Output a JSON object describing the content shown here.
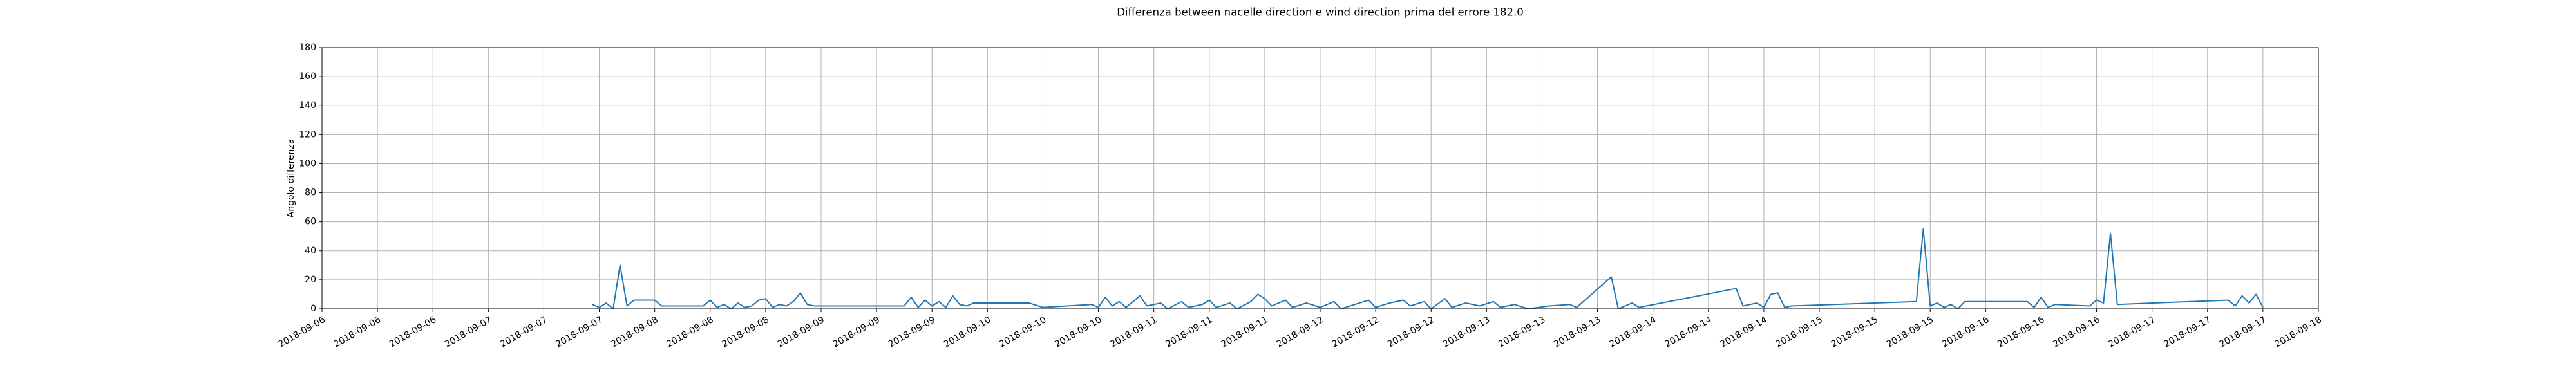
{
  "chart_data": {
    "type": "line",
    "title": "Differenza between nacelle direction e wind direction prima del errore 182.0",
    "ylabel": "Angolo differenza",
    "grid": true,
    "xlim": [
      "2018-09-06 00:00",
      "2018-09-18 00:00"
    ],
    "ylim": [
      0,
      180
    ],
    "yticks": [
      0,
      20,
      40,
      60,
      80,
      100,
      120,
      140,
      160,
      180
    ],
    "xticks": [
      {
        "value": "2018-09-06 00:00",
        "label": "2018-09-06"
      },
      {
        "value": "2018-09-06 08:00",
        "label": "2018-09-06"
      },
      {
        "value": "2018-09-06 16:00",
        "label": "2018-09-06"
      },
      {
        "value": "2018-09-07 00:00",
        "label": "2018-09-07"
      },
      {
        "value": "2018-09-07 08:00",
        "label": "2018-09-07"
      },
      {
        "value": "2018-09-07 16:00",
        "label": "2018-09-07"
      },
      {
        "value": "2018-09-08 00:00",
        "label": "2018-09-08"
      },
      {
        "value": "2018-09-08 08:00",
        "label": "2018-09-08"
      },
      {
        "value": "2018-09-08 16:00",
        "label": "2018-09-08"
      },
      {
        "value": "2018-09-09 00:00",
        "label": "2018-09-09"
      },
      {
        "value": "2018-09-09 08:00",
        "label": "2018-09-09"
      },
      {
        "value": "2018-09-09 16:00",
        "label": "2018-09-09"
      },
      {
        "value": "2018-09-10 00:00",
        "label": "2018-09-10"
      },
      {
        "value": "2018-09-10 08:00",
        "label": "2018-09-10"
      },
      {
        "value": "2018-09-10 16:00",
        "label": "2018-09-10"
      },
      {
        "value": "2018-09-11 00:00",
        "label": "2018-09-11"
      },
      {
        "value": "2018-09-11 08:00",
        "label": "2018-09-11"
      },
      {
        "value": "2018-09-11 16:00",
        "label": "2018-09-11"
      },
      {
        "value": "2018-09-12 00:00",
        "label": "2018-09-12"
      },
      {
        "value": "2018-09-12 08:00",
        "label": "2018-09-12"
      },
      {
        "value": "2018-09-12 16:00",
        "label": "2018-09-12"
      },
      {
        "value": "2018-09-13 00:00",
        "label": "2018-09-13"
      },
      {
        "value": "2018-09-13 08:00",
        "label": "2018-09-13"
      },
      {
        "value": "2018-09-13 16:00",
        "label": "2018-09-13"
      },
      {
        "value": "2018-09-14 00:00",
        "label": "2018-09-14"
      },
      {
        "value": "2018-09-14 08:00",
        "label": "2018-09-14"
      },
      {
        "value": "2018-09-14 16:00",
        "label": "2018-09-14"
      },
      {
        "value": "2018-09-15 00:00",
        "label": "2018-09-15"
      },
      {
        "value": "2018-09-15 08:00",
        "label": "2018-09-15"
      },
      {
        "value": "2018-09-15 16:00",
        "label": "2018-09-15"
      },
      {
        "value": "2018-09-16 00:00",
        "label": "2018-09-16"
      },
      {
        "value": "2018-09-16 08:00",
        "label": "2018-09-16"
      },
      {
        "value": "2018-09-16 16:00",
        "label": "2018-09-16"
      },
      {
        "value": "2018-09-17 00:00",
        "label": "2018-09-17"
      },
      {
        "value": "2018-09-17 08:00",
        "label": "2018-09-17"
      },
      {
        "value": "2018-09-17 16:00",
        "label": "2018-09-17"
      },
      {
        "value": "2018-09-18 00:00",
        "label": "2018-09-18"
      }
    ],
    "x": [
      "2018-09-07 15:00",
      "2018-09-07 16:00",
      "2018-09-07 17:00",
      "2018-09-07 18:00",
      "2018-09-07 19:00",
      "2018-09-07 20:00",
      "2018-09-07 21:00",
      "2018-09-08 00:00",
      "2018-09-08 01:00",
      "2018-09-08 07:00",
      "2018-09-08 08:00",
      "2018-09-08 09:00",
      "2018-09-08 10:00",
      "2018-09-08 11:00",
      "2018-09-08 12:00",
      "2018-09-08 13:00",
      "2018-09-08 14:00",
      "2018-09-08 15:00",
      "2018-09-08 16:00",
      "2018-09-08 17:00",
      "2018-09-08 18:00",
      "2018-09-08 19:00",
      "2018-09-08 20:00",
      "2018-09-08 21:00",
      "2018-09-08 22:00",
      "2018-09-08 23:00",
      "2018-09-09 12:00",
      "2018-09-09 13:00",
      "2018-09-09 14:00",
      "2018-09-09 15:00",
      "2018-09-09 16:00",
      "2018-09-09 17:00",
      "2018-09-09 18:00",
      "2018-09-09 19:00",
      "2018-09-09 20:00",
      "2018-09-09 21:00",
      "2018-09-09 22:00",
      "2018-09-10 06:00",
      "2018-09-10 08:00",
      "2018-09-10 15:00",
      "2018-09-10 16:00",
      "2018-09-10 17:00",
      "2018-09-10 18:00",
      "2018-09-10 19:00",
      "2018-09-10 20:00",
      "2018-09-10 22:00",
      "2018-09-10 23:00",
      "2018-09-11 01:00",
      "2018-09-11 02:00",
      "2018-09-11 04:00",
      "2018-09-11 05:00",
      "2018-09-11 07:00",
      "2018-09-11 08:00",
      "2018-09-11 09:00",
      "2018-09-11 11:00",
      "2018-09-11 12:00",
      "2018-09-11 14:00",
      "2018-09-11 15:00",
      "2018-09-11 16:00",
      "2018-09-11 17:00",
      "2018-09-11 19:00",
      "2018-09-11 20:00",
      "2018-09-11 22:00",
      "2018-09-12 00:00",
      "2018-09-12 02:00",
      "2018-09-12 03:00",
      "2018-09-12 05:00",
      "2018-09-12 07:00",
      "2018-09-12 08:00",
      "2018-09-12 10:00",
      "2018-09-12 12:00",
      "2018-09-12 13:00",
      "2018-09-12 15:00",
      "2018-09-12 16:00",
      "2018-09-12 18:00",
      "2018-09-12 19:00",
      "2018-09-12 21:00",
      "2018-09-12 23:00",
      "2018-09-13 01:00",
      "2018-09-13 02:00",
      "2018-09-13 04:00",
      "2018-09-13 06:00",
      "2018-09-13 09:00",
      "2018-09-13 12:00",
      "2018-09-13 13:00",
      "2018-09-13 18:00",
      "2018-09-13 19:00",
      "2018-09-13 21:00",
      "2018-09-13 22:00",
      "2018-09-14 12:00",
      "2018-09-14 13:00",
      "2018-09-14 15:00",
      "2018-09-14 16:00",
      "2018-09-14 17:00",
      "2018-09-14 18:00",
      "2018-09-14 19:00",
      "2018-09-14 20:00",
      "2018-09-15 14:00",
      "2018-09-15 15:00",
      "2018-09-15 16:00",
      "2018-09-15 17:00",
      "2018-09-15 18:00",
      "2018-09-15 19:00",
      "2018-09-15 20:00",
      "2018-09-15 21:00",
      "2018-09-16 06:00",
      "2018-09-16 07:00",
      "2018-09-16 08:00",
      "2018-09-16 09:00",
      "2018-09-16 10:00",
      "2018-09-16 15:00",
      "2018-09-16 16:00",
      "2018-09-16 17:00",
      "2018-09-16 18:00",
      "2018-09-16 19:00",
      "2018-09-17 11:00",
      "2018-09-17 12:00",
      "2018-09-17 13:00",
      "2018-09-17 14:00",
      "2018-09-17 15:00",
      "2018-09-17 16:00"
    ],
    "series": [
      {
        "color": "#1f77b4",
        "values": [
          3,
          1,
          4,
          0,
          30,
          2,
          6,
          6,
          2,
          2,
          6,
          1,
          3,
          0,
          4,
          1,
          2,
          6,
          7,
          1,
          3,
          2,
          5,
          11,
          3,
          2,
          2,
          8,
          1,
          6,
          2,
          5,
          1,
          9,
          3,
          2,
          4,
          4,
          1,
          3,
          1,
          8,
          2,
          5,
          1,
          9,
          2,
          4,
          0,
          5,
          1,
          3,
          6,
          1,
          4,
          0,
          5,
          10,
          7,
          2,
          6,
          1,
          4,
          1,
          5,
          0,
          3,
          6,
          1,
          4,
          6,
          2,
          5,
          0,
          7,
          1,
          4,
          2,
          5,
          1,
          3,
          0,
          2,
          3,
          1,
          22,
          0,
          4,
          1,
          14,
          2,
          4,
          1,
          10,
          11,
          1,
          2,
          5,
          55,
          2,
          4,
          1,
          3,
          0,
          5,
          5,
          1,
          8,
          1,
          3,
          2,
          6,
          4,
          52,
          3,
          6,
          2,
          9,
          4,
          10,
          1
        ]
      }
    ]
  }
}
